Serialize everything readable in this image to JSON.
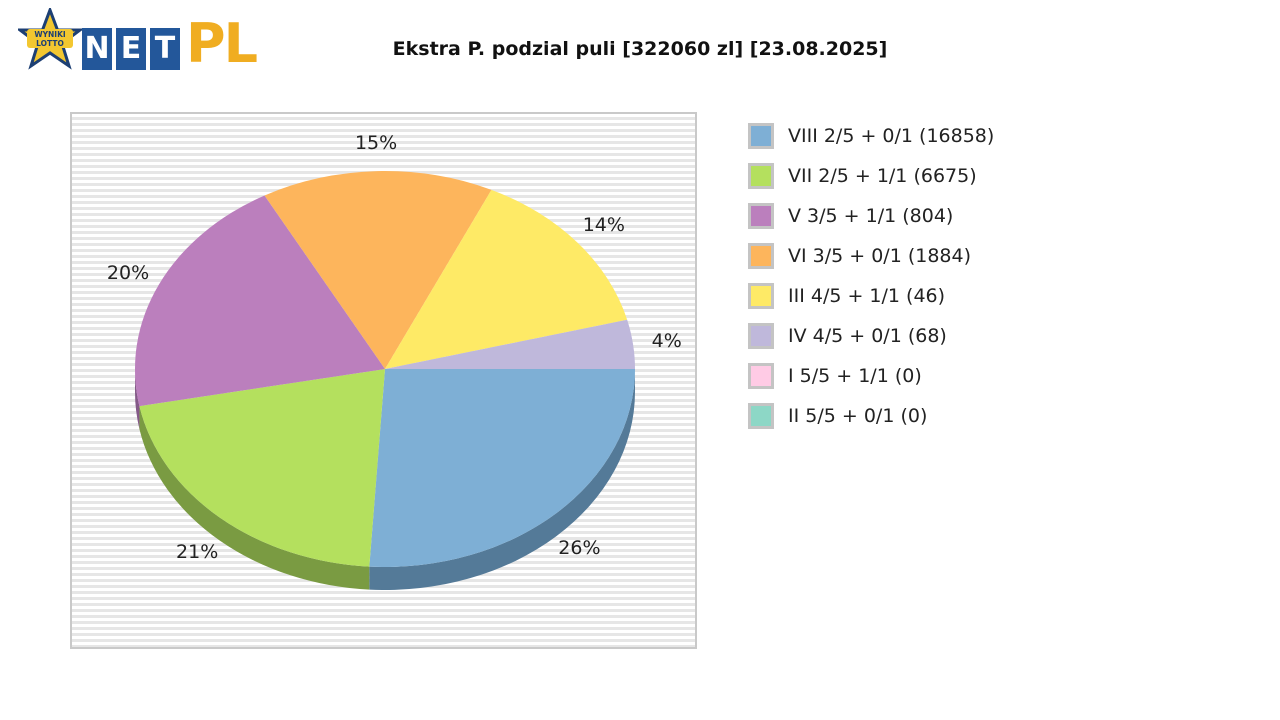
{
  "logo": {
    "badge_line1": "WYNIKI",
    "badge_line2": "LOTTO",
    "letters": [
      "N",
      "E",
      "T"
    ],
    "pl": "PL"
  },
  "chart_data": {
    "type": "pie",
    "title": "Ekstra P. podzial puli [322060 zl] [23.08.2025]",
    "slices": [
      {
        "label": "VIII 2/5 + 0/1 (16858)",
        "percent": 26,
        "color": "#7eafd5",
        "side_color": "#547a98"
      },
      {
        "label": "VII 2/5 + 1/1 (6675)",
        "percent": 21,
        "color": "#b4e05e",
        "side_color": "#7a9b42"
      },
      {
        "label": "V 3/5 + 1/1 (804)",
        "percent": 20,
        "color": "#bb7fbd",
        "side_color": "#845988"
      },
      {
        "label": "VI 3/5 + 0/1 (1884)",
        "percent": 15,
        "color": "#fdb55c",
        "side_color": "#b88446"
      },
      {
        "label": "III 4/5 + 1/1 (46)",
        "percent": 14,
        "color": "#feea66",
        "side_color": "#b8a84a"
      },
      {
        "label": "IV 4/5 + 0/1 (68)",
        "percent": 4,
        "color": "#bfb8db",
        "side_color": "#8c86a3"
      },
      {
        "label": "I 5/5 + 1/1 (0)",
        "percent": 0,
        "color": "#ffcbe5",
        "side_color": "#c49aaf"
      },
      {
        "label": "II 5/5 + 0/1 (0)",
        "percent": 0,
        "color": "#8dd7c6",
        "side_color": "#66a093"
      }
    ],
    "percent_labels": [
      "26%",
      "21%",
      "20%",
      "15%",
      "14%",
      "4%"
    ],
    "legend_placement": "right",
    "background": "horizontal stripes"
  }
}
